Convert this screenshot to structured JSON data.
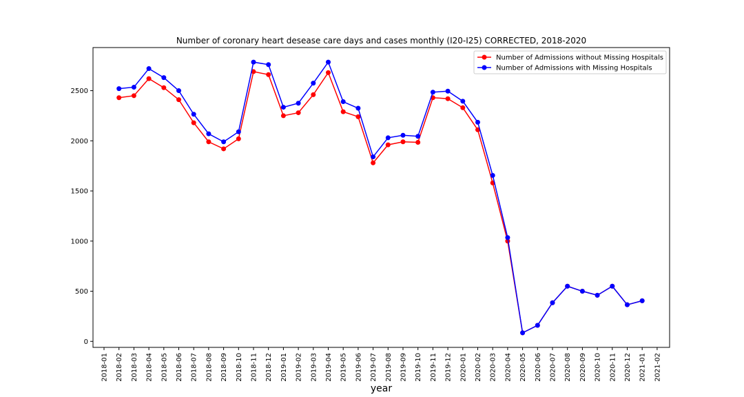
{
  "chart_data": {
    "type": "line",
    "title": "Number of coronary heart desease care days and cases monthly (I20-I25) CORRECTED, 2018-2020",
    "xlabel": "year",
    "ylabel": "",
    "ylim": [
      -60,
      2930
    ],
    "yticks": [
      0,
      500,
      1000,
      1500,
      2000,
      2500
    ],
    "xticks": [
      "2018-01",
      "2018-02",
      "2018-03",
      "2018-04",
      "2018-05",
      "2018-06",
      "2018-07",
      "2018-08",
      "2018-09",
      "2018-10",
      "2018-11",
      "2018-12",
      "2019-01",
      "2019-02",
      "2019-03",
      "2019-04",
      "2019-05",
      "2019-06",
      "2019-07",
      "2019-08",
      "2019-09",
      "2019-10",
      "2019-11",
      "2019-12",
      "2020-01",
      "2020-02",
      "2020-03",
      "2020-04",
      "2020-05",
      "2020-06",
      "2020-07",
      "2020-08",
      "2020-09",
      "2020-10",
      "2020-11",
      "2020-12",
      "2021-01",
      "2021-02"
    ],
    "x": [
      "2018-02",
      "2018-03",
      "2018-04",
      "2018-05",
      "2018-06",
      "2018-07",
      "2018-08",
      "2018-09",
      "2018-10",
      "2018-11",
      "2018-12",
      "2019-01",
      "2019-02",
      "2019-03",
      "2019-04",
      "2019-05",
      "2019-06",
      "2019-07",
      "2019-08",
      "2019-09",
      "2019-10",
      "2019-11",
      "2019-12",
      "2020-01",
      "2020-02",
      "2020-03",
      "2020-04",
      "2020-05",
      "2020-06",
      "2020-07",
      "2020-08",
      "2020-09",
      "2020-10",
      "2020-11",
      "2020-12",
      "2021-01"
    ],
    "grid": false,
    "legend_position": "upper-right",
    "series": [
      {
        "name": "Number of Admissions without Missing Hospitals",
        "color": "#ff0000",
        "values": [
          2430,
          2450,
          2620,
          2530,
          2410,
          2180,
          1990,
          1920,
          2020,
          2690,
          2660,
          2250,
          2280,
          2460,
          2680,
          2290,
          2240,
          1780,
          1960,
          1990,
          1985,
          2430,
          2420,
          2330,
          2110,
          1580,
          1000,
          85,
          160,
          385,
          550,
          500,
          460,
          550,
          365,
          405
        ]
      },
      {
        "name": "Number of Admissions with Missing Hospitals",
        "color": "#0000ff",
        "values": [
          2520,
          2535,
          2720,
          2630,
          2500,
          2265,
          2070,
          1990,
          2090,
          2785,
          2760,
          2335,
          2375,
          2575,
          2785,
          2390,
          2325,
          1840,
          2030,
          2055,
          2045,
          2485,
          2495,
          2395,
          2185,
          1655,
          1035,
          85,
          160,
          385,
          550,
          500,
          460,
          550,
          365,
          405
        ]
      }
    ]
  }
}
